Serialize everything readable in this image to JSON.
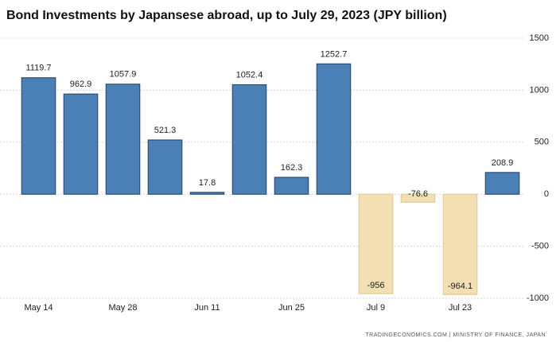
{
  "chart_data": {
    "type": "bar",
    "title": "Bond Investments by Japansese abroad, up to July 29, 2023 (JPY billion)",
    "categories": [
      "May 14",
      null,
      "May 28",
      null,
      "Jun 11",
      null,
      "Jun 25",
      null,
      "Jul 9",
      null,
      "Jul 23",
      null
    ],
    "values": [
      1119.7,
      962.9,
      1057.9,
      521.3,
      17.8,
      1052.4,
      162.3,
      1252.7,
      -956,
      -76.6,
      -964.1,
      208.9
    ],
    "color": "#4a80b6",
    "negative_color": "#f3dfb4",
    "ylim": [
      -1000,
      1500
    ],
    "yticks": [
      -1000,
      -500,
      0,
      500,
      1000,
      1500
    ],
    "grid": true,
    "source": "TRADINGECONOMICS.COM | MINISTRY OF FINANCE, JAPAN"
  }
}
